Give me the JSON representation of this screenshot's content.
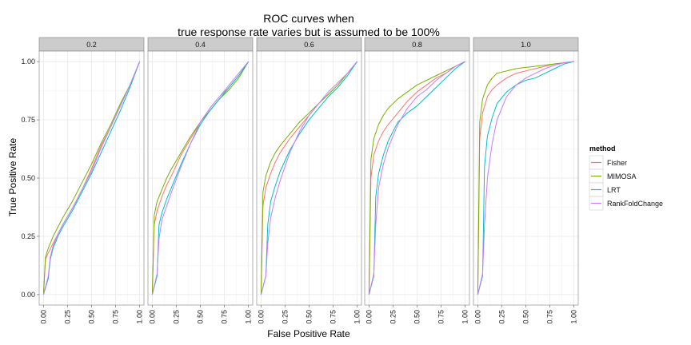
{
  "chart_data": {
    "type": "line",
    "title": [
      "ROC curves when",
      "true response rate varies but is assumed to be 100%"
    ],
    "xlabel": "False Positive Rate",
    "ylabel": "True Positive Rate",
    "xlim": [
      0,
      1
    ],
    "ylim": [
      0,
      1
    ],
    "x_ticks": [
      "0.00",
      "0.25",
      "0.50",
      "0.75",
      "1.00"
    ],
    "y_ticks": [
      "0.00",
      "0.25",
      "0.50",
      "0.75",
      "1.00"
    ],
    "grid": true,
    "legend": {
      "title": "method",
      "position": "right",
      "entries": [
        "Fisher",
        "MIMOSA",
        "LRT",
        "RankFoldChange"
      ]
    },
    "colors": {
      "Fisher": "#F8766D",
      "MIMOSA": "#7CAE00",
      "LRT": "#00BFC4",
      "RankFoldChange": "#C77CFF"
    },
    "panels": [
      {
        "label": "0.2",
        "series": [
          {
            "name": "Fisher",
            "x": [
              0,
              0.02,
              0.05,
              0.1,
              0.15,
              0.2,
              0.3,
              0.4,
              0.5,
              0.6,
              0.7,
              0.8,
              0.9,
              1.0
            ],
            "y": [
              0,
              0.15,
              0.18,
              0.22,
              0.26,
              0.3,
              0.37,
              0.45,
              0.54,
              0.64,
              0.72,
              0.81,
              0.9,
              1.0
            ]
          },
          {
            "name": "MIMOSA",
            "x": [
              0,
              0.02,
              0.05,
              0.1,
              0.15,
              0.2,
              0.3,
              0.4,
              0.5,
              0.6,
              0.7,
              0.8,
              0.9,
              1.0
            ],
            "y": [
              0,
              0.16,
              0.2,
              0.25,
              0.29,
              0.33,
              0.4,
              0.48,
              0.56,
              0.65,
              0.73,
              0.82,
              0.9,
              1.0
            ]
          },
          {
            "name": "LRT",
            "x": [
              0,
              0.05,
              0.07,
              0.1,
              0.15,
              0.2,
              0.3,
              0.4,
              0.5,
              0.6,
              0.7,
              0.8,
              0.9,
              1.0
            ],
            "y": [
              0,
              0.07,
              0.15,
              0.2,
              0.25,
              0.29,
              0.36,
              0.44,
              0.52,
              0.61,
              0.7,
              0.79,
              0.89,
              1.0
            ]
          },
          {
            "name": "RankFoldChange",
            "x": [
              0,
              0.05,
              0.07,
              0.1,
              0.15,
              0.2,
              0.3,
              0.4,
              0.5,
              0.6,
              0.7,
              0.8,
              0.9,
              1.0
            ],
            "y": [
              0,
              0.08,
              0.16,
              0.21,
              0.26,
              0.3,
              0.37,
              0.45,
              0.53,
              0.63,
              0.72,
              0.81,
              0.9,
              1.0
            ]
          }
        ]
      },
      {
        "label": "0.4",
        "series": [
          {
            "name": "Fisher",
            "x": [
              0,
              0.02,
              0.05,
              0.1,
              0.15,
              0.2,
              0.3,
              0.4,
              0.5,
              0.6,
              0.7,
              0.8,
              0.9,
              1.0
            ],
            "y": [
              0,
              0.3,
              0.36,
              0.42,
              0.47,
              0.51,
              0.6,
              0.67,
              0.74,
              0.8,
              0.85,
              0.89,
              0.94,
              1.0
            ]
          },
          {
            "name": "MIMOSA",
            "x": [
              0,
              0.02,
              0.05,
              0.1,
              0.15,
              0.2,
              0.3,
              0.4,
              0.5,
              0.6,
              0.7,
              0.8,
              0.9,
              1.0
            ],
            "y": [
              0,
              0.34,
              0.4,
              0.45,
              0.5,
              0.54,
              0.61,
              0.68,
              0.74,
              0.79,
              0.84,
              0.88,
              0.93,
              1.0
            ]
          },
          {
            "name": "LRT",
            "x": [
              0,
              0.05,
              0.07,
              0.1,
              0.15,
              0.2,
              0.3,
              0.4,
              0.5,
              0.6,
              0.7,
              0.8,
              0.9,
              1.0
            ],
            "y": [
              0,
              0.08,
              0.3,
              0.35,
              0.41,
              0.46,
              0.56,
              0.65,
              0.73,
              0.79,
              0.84,
              0.89,
              0.94,
              1.0
            ]
          },
          {
            "name": "RankFoldChange",
            "x": [
              0,
              0.05,
              0.07,
              0.1,
              0.15,
              0.2,
              0.3,
              0.4,
              0.5,
              0.6,
              0.7,
              0.8,
              0.9,
              1.0
            ],
            "y": [
              0,
              0.09,
              0.24,
              0.32,
              0.38,
              0.44,
              0.55,
              0.65,
              0.74,
              0.8,
              0.85,
              0.9,
              0.95,
              1.0
            ]
          }
        ]
      },
      {
        "label": "0.6",
        "series": [
          {
            "name": "Fisher",
            "x": [
              0,
              0.02,
              0.05,
              0.1,
              0.15,
              0.2,
              0.3,
              0.4,
              0.5,
              0.6,
              0.7,
              0.8,
              0.9,
              1.0
            ],
            "y": [
              0,
              0.38,
              0.46,
              0.52,
              0.57,
              0.61,
              0.67,
              0.72,
              0.77,
              0.82,
              0.86,
              0.9,
              0.95,
              1.0
            ]
          },
          {
            "name": "MIMOSA",
            "x": [
              0,
              0.02,
              0.05,
              0.1,
              0.15,
              0.2,
              0.3,
              0.4,
              0.5,
              0.6,
              0.7,
              0.8,
              0.9,
              1.0
            ],
            "y": [
              0,
              0.44,
              0.51,
              0.57,
              0.61,
              0.64,
              0.69,
              0.74,
              0.78,
              0.82,
              0.86,
              0.9,
              0.95,
              1.0
            ]
          },
          {
            "name": "LRT",
            "x": [
              0,
              0.05,
              0.07,
              0.1,
              0.15,
              0.2,
              0.3,
              0.4,
              0.5,
              0.6,
              0.7,
              0.8,
              0.9,
              1.0
            ],
            "y": [
              0,
              0.08,
              0.3,
              0.4,
              0.47,
              0.53,
              0.62,
              0.69,
              0.75,
              0.8,
              0.85,
              0.89,
              0.94,
              1.0
            ]
          },
          {
            "name": "RankFoldChange",
            "x": [
              0,
              0.05,
              0.07,
              0.1,
              0.15,
              0.2,
              0.3,
              0.4,
              0.5,
              0.6,
              0.7,
              0.8,
              0.9,
              1.0
            ],
            "y": [
              0,
              0.08,
              0.22,
              0.33,
              0.42,
              0.49,
              0.61,
              0.7,
              0.77,
              0.82,
              0.87,
              0.91,
              0.95,
              1.0
            ]
          }
        ]
      },
      {
        "label": "0.8",
        "series": [
          {
            "name": "Fisher",
            "x": [
              0,
              0.02,
              0.05,
              0.1,
              0.15,
              0.2,
              0.3,
              0.4,
              0.5,
              0.6,
              0.7,
              0.8,
              0.9,
              1.0
            ],
            "y": [
              0,
              0.5,
              0.6,
              0.66,
              0.7,
              0.73,
              0.78,
              0.83,
              0.87,
              0.9,
              0.93,
              0.95,
              0.98,
              1.0
            ]
          },
          {
            "name": "MIMOSA",
            "x": [
              0,
              0.02,
              0.05,
              0.1,
              0.15,
              0.2,
              0.3,
              0.4,
              0.5,
              0.6,
              0.7,
              0.8,
              0.9,
              1.0
            ],
            "y": [
              0,
              0.58,
              0.67,
              0.73,
              0.77,
              0.8,
              0.84,
              0.87,
              0.9,
              0.92,
              0.94,
              0.96,
              0.98,
              1.0
            ]
          },
          {
            "name": "LRT",
            "x": [
              0,
              0.05,
              0.07,
              0.1,
              0.15,
              0.2,
              0.3,
              0.4,
              0.5,
              0.6,
              0.7,
              0.8,
              0.9,
              1.0
            ],
            "y": [
              0,
              0.08,
              0.42,
              0.52,
              0.6,
              0.66,
              0.74,
              0.78,
              0.81,
              0.85,
              0.89,
              0.93,
              0.97,
              1.0
            ]
          },
          {
            "name": "RankFoldChange",
            "x": [
              0,
              0.05,
              0.07,
              0.1,
              0.15,
              0.2,
              0.3,
              0.4,
              0.5,
              0.6,
              0.7,
              0.8,
              0.9,
              1.0
            ],
            "y": [
              0,
              0.09,
              0.3,
              0.46,
              0.56,
              0.63,
              0.73,
              0.8,
              0.85,
              0.88,
              0.92,
              0.95,
              0.98,
              1.0
            ]
          }
        ]
      },
      {
        "label": "1.0",
        "series": [
          {
            "name": "Fisher",
            "x": [
              0,
              0.02,
              0.05,
              0.1,
              0.15,
              0.2,
              0.3,
              0.4,
              0.5,
              0.6,
              0.7,
              0.8,
              0.9,
              1.0
            ],
            "y": [
              0,
              0.67,
              0.78,
              0.85,
              0.88,
              0.9,
              0.93,
              0.95,
              0.96,
              0.97,
              0.98,
              0.99,
              0.995,
              1.0
            ]
          },
          {
            "name": "MIMOSA",
            "x": [
              0,
              0.02,
              0.05,
              0.1,
              0.15,
              0.2,
              0.3,
              0.4,
              0.5,
              0.6,
              0.7,
              0.8,
              0.9,
              1.0
            ],
            "y": [
              0,
              0.74,
              0.84,
              0.9,
              0.93,
              0.95,
              0.96,
              0.97,
              0.975,
              0.98,
              0.985,
              0.99,
              0.995,
              1.0
            ]
          },
          {
            "name": "LRT",
            "x": [
              0,
              0.05,
              0.07,
              0.1,
              0.15,
              0.2,
              0.3,
              0.4,
              0.5,
              0.6,
              0.7,
              0.8,
              0.9,
              1.0
            ],
            "y": [
              0,
              0.08,
              0.55,
              0.68,
              0.76,
              0.82,
              0.87,
              0.9,
              0.92,
              0.93,
              0.95,
              0.97,
              0.99,
              1.0
            ]
          },
          {
            "name": "RankFoldChange",
            "x": [
              0,
              0.05,
              0.07,
              0.1,
              0.15,
              0.2,
              0.3,
              0.4,
              0.5,
              0.6,
              0.7,
              0.8,
              0.9,
              1.0
            ],
            "y": [
              0,
              0.09,
              0.3,
              0.5,
              0.65,
              0.75,
              0.85,
              0.9,
              0.93,
              0.95,
              0.97,
              0.985,
              0.995,
              1.0
            ]
          }
        ]
      }
    ]
  }
}
